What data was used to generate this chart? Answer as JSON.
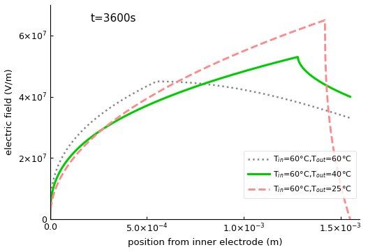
{
  "title": "t=3600s",
  "xlabel": "position from inner electrode (m)",
  "ylabel": "electric field (V/m)",
  "xlim": [
    0,
    0.0016
  ],
  "ylim": [
    0,
    70000000.0
  ],
  "yticks": [
    0,
    20000000.0,
    40000000.0,
    60000000.0
  ],
  "xticks": [
    0.0,
    0.0005,
    0.001,
    0.0015
  ],
  "gray_color": "#888888",
  "green_color": "#00cc00",
  "red_color": "#ff8888",
  "title_fontsize": 11,
  "label_fontsize": 9.5,
  "tick_fontsize": 9
}
